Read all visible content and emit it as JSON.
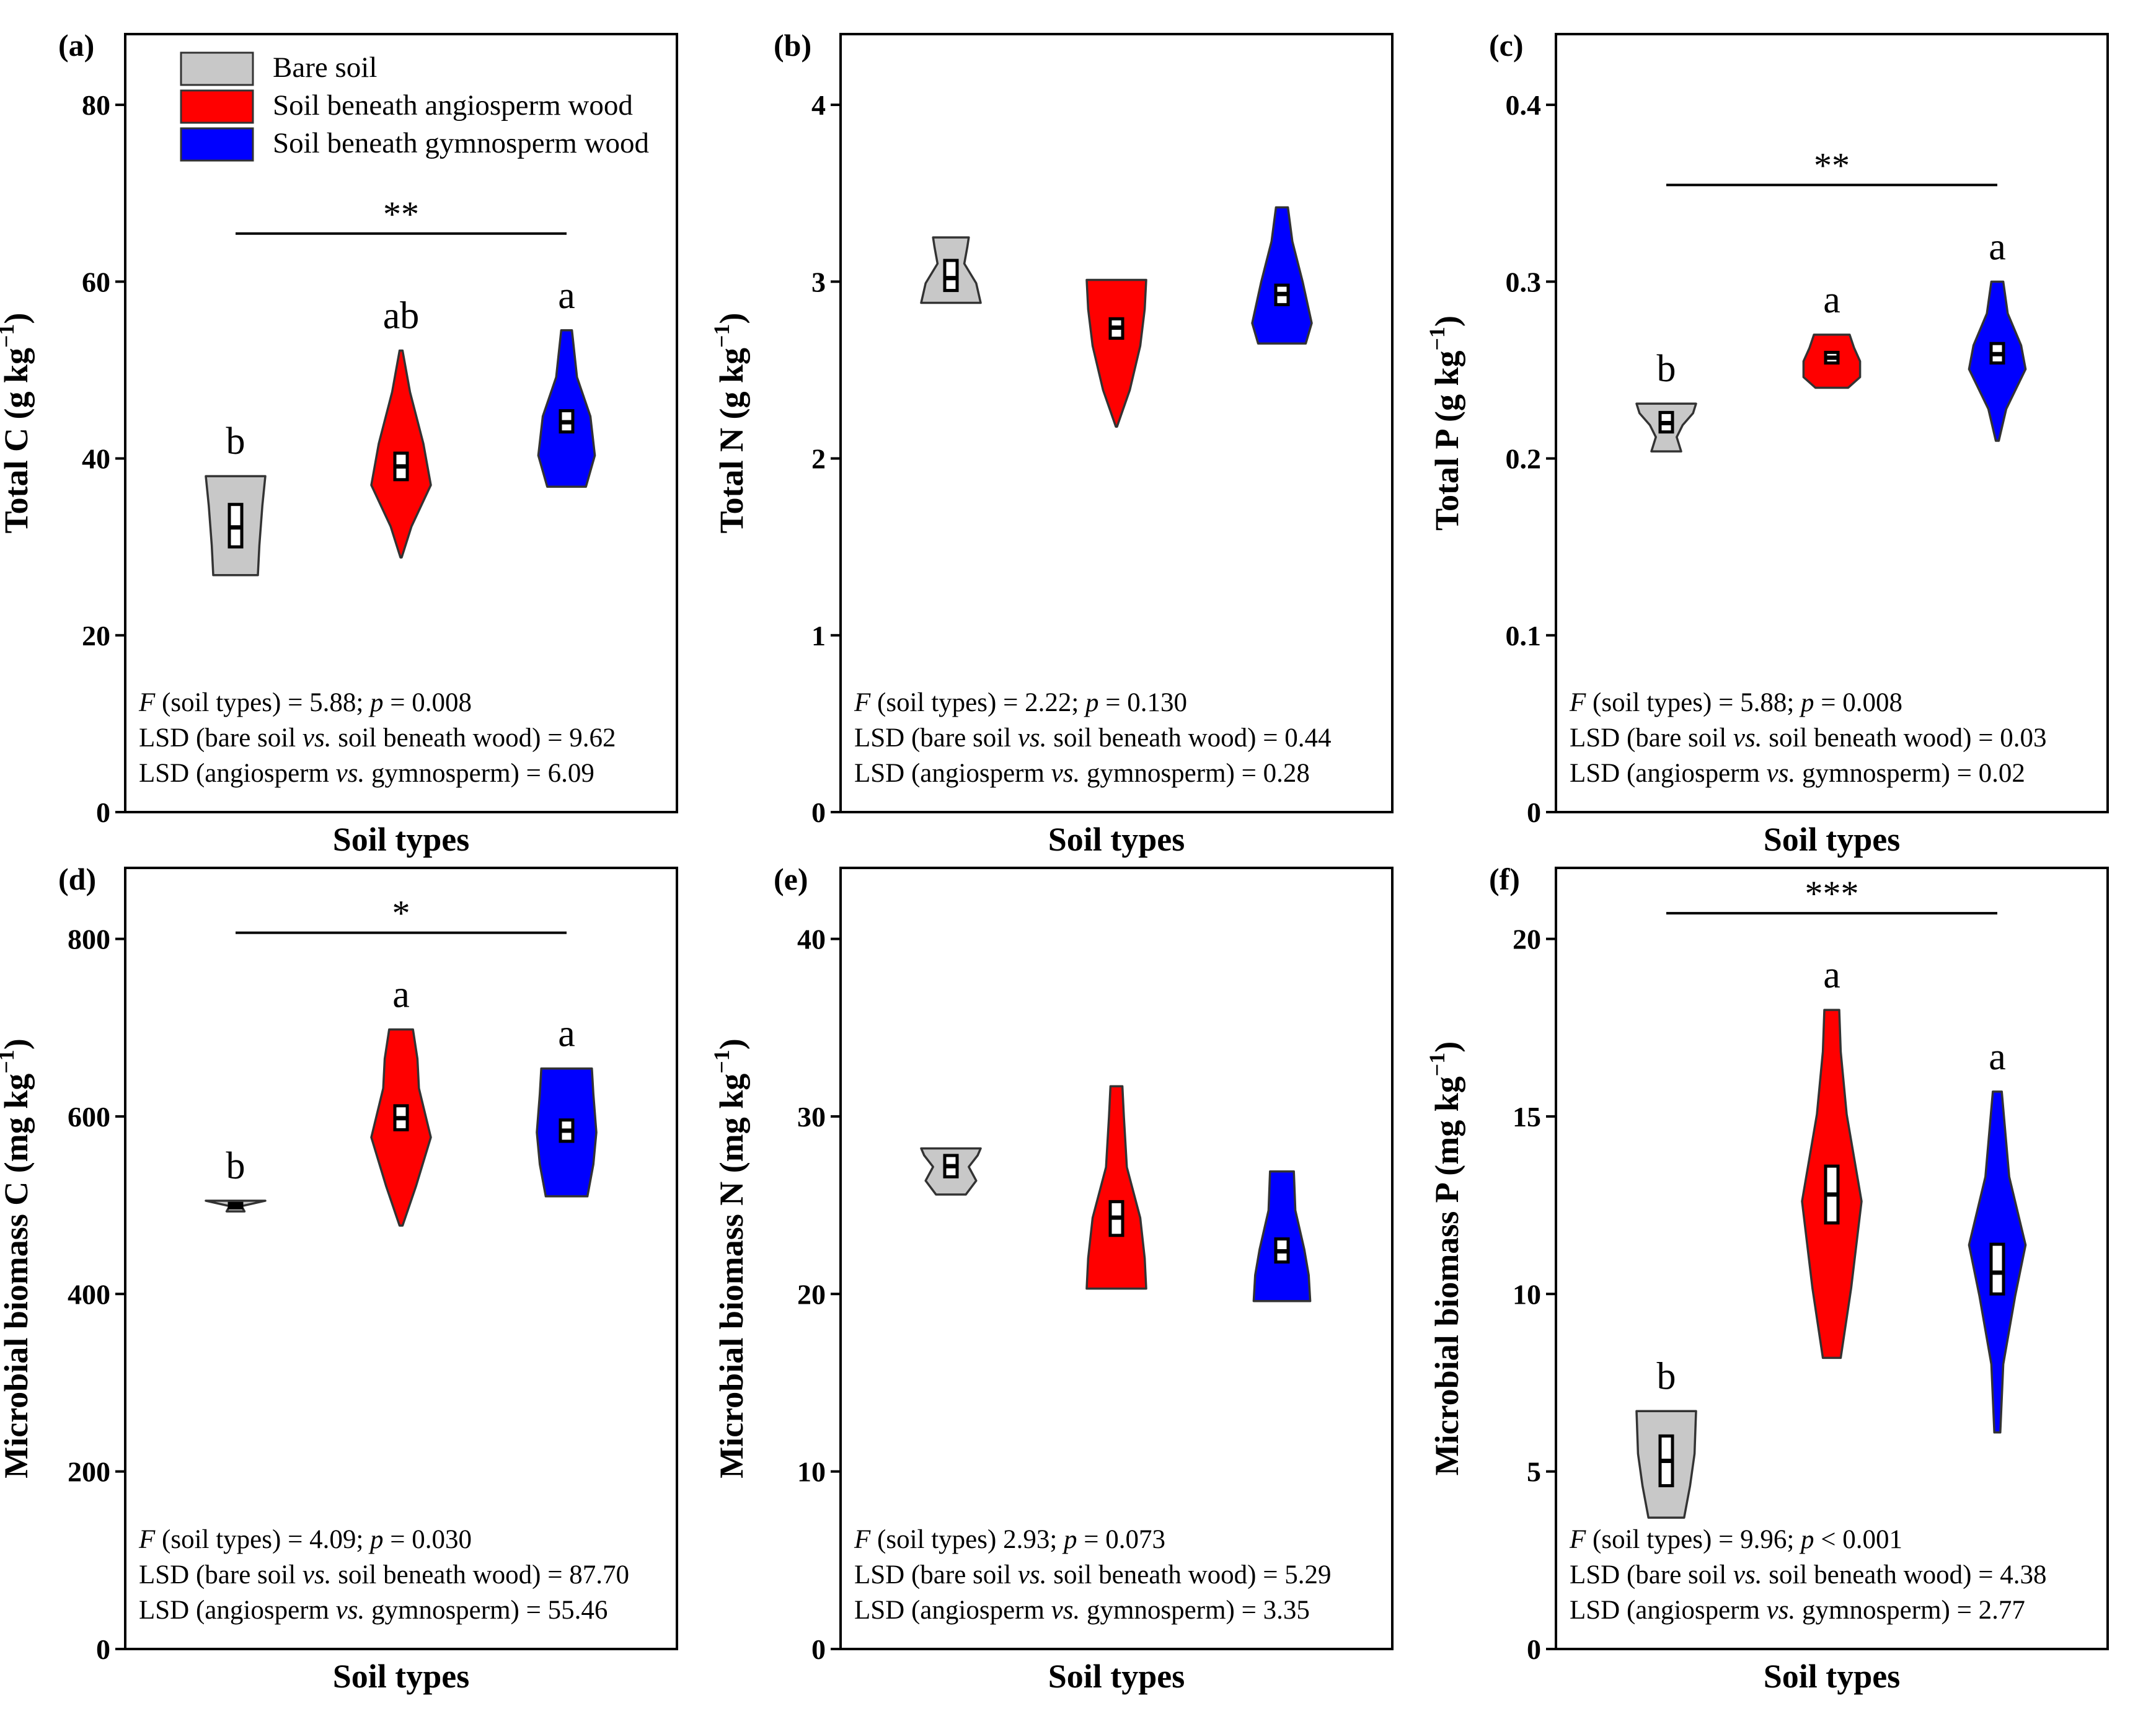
{
  "chart_data": [
    {
      "type": "violin",
      "panel": "(a)",
      "ylabel": "Total C (g kg",
      "ylabel_sup": "−1",
      "ylabel_end": ")",
      "xlabel": "Soil types",
      "ylim": [
        0,
        88
      ],
      "ticks": [
        0,
        20,
        40,
        60,
        80
      ],
      "series": [
        {
          "name": "Bare soil",
          "color": "#c8c8c8",
          "min": 26.8,
          "max": 38.0,
          "q1": 30.0,
          "median": 32.2,
          "q3": 34.8,
          "shape": [
            [
              0,
              0.75
            ],
            [
              0.3,
              0.8
            ],
            [
              0.7,
              0.9
            ],
            [
              1,
              1.0
            ]
          ],
          "letter": "b"
        },
        {
          "name": "Soil beneath angiosperm wood",
          "color": "#ff0000",
          "min": 28.8,
          "max": 52.2,
          "q1": 37.6,
          "median": 39.1,
          "q3": 40.6,
          "shape": [
            [
              0,
              0.02
            ],
            [
              0.15,
              0.35
            ],
            [
              0.35,
              1.0
            ],
            [
              0.55,
              0.75
            ],
            [
              0.8,
              0.3
            ],
            [
              1,
              0.05
            ]
          ],
          "letter": "ab"
        },
        {
          "name": "Soil beneath gymnosperm wood",
          "color": "#0000ff",
          "min": 36.8,
          "max": 54.5,
          "q1": 43.0,
          "median": 44.1,
          "q3": 45.4,
          "shape": [
            [
              0,
              0.65
            ],
            [
              0.2,
              0.95
            ],
            [
              0.45,
              0.8
            ],
            [
              0.7,
              0.35
            ],
            [
              1,
              0.18
            ]
          ],
          "letter": "a"
        }
      ],
      "sig": "**",
      "stats": [
        "(soil types) = 5.88; ",
        "= 0.008",
        "LSD (bare soil ",
        " soil beneath wood) = 9.62",
        "LSD (angiosperm ",
        " gymnosperm) = 6.09"
      ]
    },
    {
      "type": "violin",
      "panel": "(b)",
      "ylabel": "Total N (g kg",
      "ylabel_sup": "−1",
      "ylabel_end": ")",
      "xlabel": "Soil types",
      "ylim": [
        0,
        4.4
      ],
      "ticks": [
        0,
        1,
        2,
        3,
        4
      ],
      "series": [
        {
          "name": "Bare soil",
          "color": "#c8c8c8",
          "min": 2.88,
          "max": 3.25,
          "q1": 2.95,
          "median": 3.02,
          "q3": 3.12,
          "shape": [
            [
              0,
              1.0
            ],
            [
              0.3,
              0.85
            ],
            [
              0.6,
              0.45
            ],
            [
              0.85,
              0.55
            ],
            [
              1,
              0.6
            ]
          ],
          "letter": ""
        },
        {
          "name": "Soil beneath angiosperm wood",
          "color": "#ff0000",
          "min": 2.18,
          "max": 3.01,
          "q1": 2.68,
          "median": 2.74,
          "q3": 2.79,
          "shape": [
            [
              0,
              0.02
            ],
            [
              0.25,
              0.45
            ],
            [
              0.55,
              0.8
            ],
            [
              0.8,
              0.95
            ],
            [
              1,
              1.0
            ]
          ],
          "letter": ""
        },
        {
          "name": "Soil beneath gymnosperm wood",
          "color": "#0000ff",
          "min": 2.65,
          "max": 3.42,
          "q1": 2.87,
          "median": 2.93,
          "q3": 2.98,
          "shape": [
            [
              0,
              0.8
            ],
            [
              0.15,
              1.0
            ],
            [
              0.45,
              0.7
            ],
            [
              0.75,
              0.35
            ],
            [
              1,
              0.2
            ]
          ],
          "letter": ""
        }
      ],
      "sig": "",
      "stats": [
        "(soil types) = 2.22; ",
        "= 0.130",
        "LSD (bare soil ",
        " soil beneath wood) = 0.44",
        "LSD (angiosperm ",
        " gymnosperm) = 0.28"
      ]
    },
    {
      "type": "violin",
      "panel": "(c)",
      "ylabel": "Total P (g kg",
      "ylabel_sup": "−1",
      "ylabel_end": ")",
      "xlabel": "Soil types",
      "ylim": [
        0,
        0.44
      ],
      "ticks": [
        0,
        0.1,
        0.2,
        0.3,
        0.4
      ],
      "series": [
        {
          "name": "Bare soil",
          "color": "#c8c8c8",
          "min": 0.204,
          "max": 0.231,
          "q1": 0.215,
          "median": 0.22,
          "q3": 0.226,
          "shape": [
            [
              0,
              0.5
            ],
            [
              0.3,
              0.35
            ],
            [
              0.55,
              0.55
            ],
            [
              0.8,
              0.9
            ],
            [
              1,
              1.0
            ]
          ],
          "letter": "b"
        },
        {
          "name": "Soil beneath angiosperm wood",
          "color": "#ff0000",
          "min": 0.24,
          "max": 0.27,
          "q1": 0.254,
          "median": 0.257,
          "q3": 0.26,
          "shape": [
            [
              0,
              0.55
            ],
            [
              0.2,
              0.95
            ],
            [
              0.5,
              0.95
            ],
            [
              0.75,
              0.75
            ],
            [
              1,
              0.6
            ]
          ],
          "letter": "a"
        },
        {
          "name": "Soil beneath gymnosperm wood",
          "color": "#0000ff",
          "min": 0.21,
          "max": 0.3,
          "q1": 0.254,
          "median": 0.259,
          "q3": 0.265,
          "shape": [
            [
              0,
              0.05
            ],
            [
              0.2,
              0.3
            ],
            [
              0.45,
              0.95
            ],
            [
              0.6,
              0.8
            ],
            [
              0.8,
              0.35
            ],
            [
              1,
              0.2
            ]
          ],
          "letter": "a"
        }
      ],
      "sig": "**",
      "stats": [
        "(soil types) = 5.88; ",
        "= 0.008",
        "LSD (bare soil ",
        " soil beneath wood) = 0.03",
        "LSD (angiosperm ",
        " gymnosperm) = 0.02"
      ]
    },
    {
      "type": "violin",
      "panel": "(d)",
      "ylabel": "Microbial biomass C (mg kg",
      "ylabel_sup": "−1",
      "ylabel_end": ")",
      "xlabel": "Soil types",
      "ylim": [
        0,
        880
      ],
      "ticks": [
        0,
        200,
        400,
        600,
        800
      ],
      "series": [
        {
          "name": "Bare soil",
          "color": "#c8c8c8",
          "min": 493,
          "max": 505,
          "q1": 497,
          "median": 499,
          "q3": 502,
          "shape": [
            [
              0,
              0.3
            ],
            [
              0.5,
              0.2
            ],
            [
              1,
              1.0
            ]
          ],
          "letter": "b"
        },
        {
          "name": "Soil beneath angiosperm wood",
          "color": "#ff0000",
          "min": 477,
          "max": 698,
          "q1": 585,
          "median": 598,
          "q3": 612,
          "shape": [
            [
              0,
              0.05
            ],
            [
              0.2,
              0.5
            ],
            [
              0.45,
              1.0
            ],
            [
              0.7,
              0.6
            ],
            [
              0.85,
              0.55
            ],
            [
              1,
              0.4
            ]
          ],
          "letter": "a"
        },
        {
          "name": "Soil beneath gymnosperm wood",
          "color": "#0000ff",
          "min": 510,
          "max": 654,
          "q1": 572,
          "median": 584,
          "q3": 596,
          "shape": [
            [
              0,
              0.7
            ],
            [
              0.25,
              0.9
            ],
            [
              0.5,
              1.0
            ],
            [
              0.8,
              0.9
            ],
            [
              1,
              0.85
            ]
          ],
          "letter": "a"
        }
      ],
      "sig": "*",
      "stats": [
        "(soil types) = 4.09; ",
        "= 0.030",
        "LSD (bare soil ",
        " soil beneath wood) = 87.70",
        "LSD (angiosperm ",
        " gymnosperm) = 55.46"
      ]
    },
    {
      "type": "violin",
      "panel": "(e)",
      "ylabel": "Microbial biomass N (mg kg",
      "ylabel_sup": "−1",
      "ylabel_end": ")",
      "xlabel": "Soil types",
      "ylim": [
        0,
        44
      ],
      "ticks": [
        0,
        10,
        20,
        30,
        40
      ],
      "series": [
        {
          "name": "Bare soil",
          "color": "#c8c8c8",
          "min": 25.6,
          "max": 28.2,
          "q1": 26.6,
          "median": 27.2,
          "q3": 27.8,
          "shape": [
            [
              0,
              0.5
            ],
            [
              0.3,
              0.85
            ],
            [
              0.6,
              0.6
            ],
            [
              0.85,
              0.9
            ],
            [
              1,
              1.0
            ]
          ],
          "letter": ""
        },
        {
          "name": "Soil beneath angiosperm wood",
          "color": "#ff0000",
          "min": 20.3,
          "max": 31.7,
          "q1": 23.3,
          "median": 24.3,
          "q3": 25.2,
          "shape": [
            [
              0,
              1.0
            ],
            [
              0.15,
              0.95
            ],
            [
              0.35,
              0.8
            ],
            [
              0.6,
              0.35
            ],
            [
              0.85,
              0.25
            ],
            [
              1,
              0.2
            ]
          ],
          "letter": ""
        },
        {
          "name": "Soil beneath gymnosperm wood",
          "color": "#0000ff",
          "min": 19.6,
          "max": 26.9,
          "q1": 21.8,
          "median": 22.4,
          "q3": 23.1,
          "shape": [
            [
              0,
              0.95
            ],
            [
              0.2,
              0.9
            ],
            [
              0.4,
              0.75
            ],
            [
              0.7,
              0.45
            ],
            [
              1,
              0.4
            ]
          ],
          "letter": ""
        }
      ],
      "sig": "",
      "stats": [
        "(soil types)  2.93; ",
        "= 0.073",
        "LSD (bare soil ",
        " soil beneath wood) = 5.29",
        "LSD (angiosperm ",
        " gymnosperm) = 3.35"
      ]
    },
    {
      "type": "violin",
      "panel": "(f)",
      "ylabel": "Microbial biomass P (mg kg",
      "ylabel_sup": "−1",
      "ylabel_end": ")",
      "xlabel": "Soil types",
      "ylim": [
        0,
        22
      ],
      "ticks": [
        0,
        5,
        10,
        15,
        20
      ],
      "series": [
        {
          "name": "Bare soil",
          "color": "#c8c8c8",
          "min": 3.7,
          "max": 6.7,
          "q1": 4.6,
          "median": 5.3,
          "q3": 6.0,
          "shape": [
            [
              0,
              0.6
            ],
            [
              0.3,
              0.8
            ],
            [
              0.6,
              0.95
            ],
            [
              1,
              1.0
            ]
          ],
          "letter": "b"
        },
        {
          "name": "Soil beneath angiosperm wood",
          "color": "#ff0000",
          "min": 8.2,
          "max": 18.0,
          "q1": 12.0,
          "median": 12.8,
          "q3": 13.6,
          "shape": [
            [
              0,
              0.3
            ],
            [
              0.2,
              0.65
            ],
            [
              0.45,
              1.0
            ],
            [
              0.7,
              0.5
            ],
            [
              0.88,
              0.3
            ],
            [
              1,
              0.25
            ]
          ],
          "letter": "a"
        },
        {
          "name": "Soil beneath gymnosperm wood",
          "color": "#0000ff",
          "min": 6.1,
          "max": 15.7,
          "q1": 10.0,
          "median": 10.6,
          "q3": 11.4,
          "shape": [
            [
              0,
              0.1
            ],
            [
              0.2,
              0.2
            ],
            [
              0.4,
              0.6
            ],
            [
              0.55,
              0.95
            ],
            [
              0.75,
              0.4
            ],
            [
              1,
              0.15
            ]
          ],
          "letter": "a"
        }
      ],
      "sig": "***",
      "stats": [
        "(soil types) = 9.96; ",
        "< 0.001",
        "LSD (bare soil ",
        " soil beneath wood) = 4.38",
        "LSD (angiosperm ",
        " gymnosperm) = 2.77"
      ]
    }
  ],
  "legend": {
    "items": [
      {
        "label": "Bare soil",
        "color": "#c8c8c8"
      },
      {
        "label": "Soil beneath angiosperm wood",
        "color": "#ff0000"
      },
      {
        "label": "Soil beneath gymnosperm wood",
        "color": "#0000ff"
      }
    ]
  },
  "stat_symbols": {
    "F": "F",
    "p": "p",
    "vs": "vs."
  }
}
